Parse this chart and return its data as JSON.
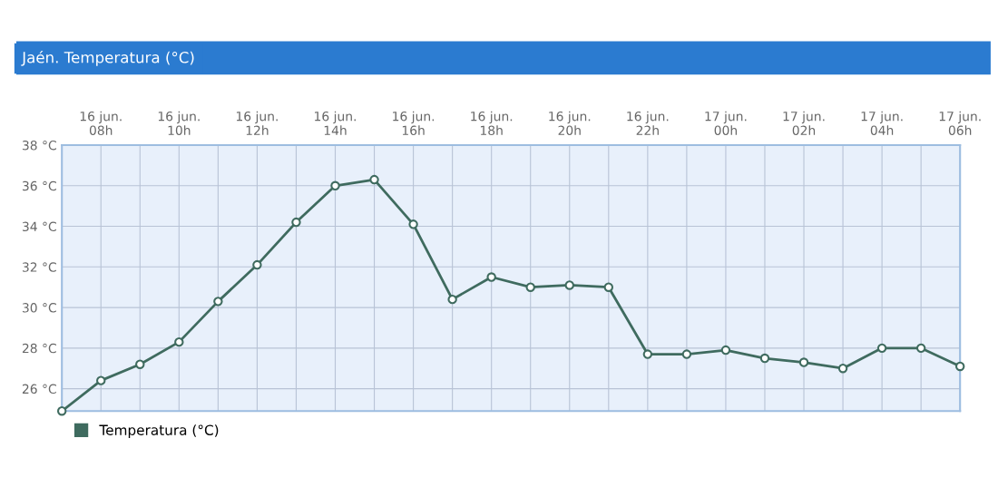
{
  "chart_data": {
    "type": "line",
    "title": "Jaén. Temperatura (°C)",
    "categories": [
      null,
      "16 jun.\n08h",
      null,
      "16 jun.\n10h",
      null,
      "16 jun.\n12h",
      null,
      "16 jun.\n14h",
      null,
      "16 jun.\n16h",
      null,
      "16 jun.\n18h",
      null,
      "16 jun.\n20h",
      null,
      "16 jun.\n22h",
      null,
      "17 jun.\n00h",
      null,
      "17 jun.\n02h",
      null,
      "17 jun.\n04h",
      null,
      "17 jun.\n06h"
    ],
    "series": [
      {
        "name": "Temperatura (°C)",
        "color": "#3f6b5f",
        "values": [
          24.9,
          26.4,
          27.2,
          28.3,
          30.3,
          32.1,
          34.2,
          36.0,
          36.3,
          34.1,
          30.4,
          31.5,
          31.0,
          31.1,
          31.0,
          27.7,
          27.7,
          27.9,
          27.5,
          27.3,
          27.0,
          28.0,
          28.0,
          27.1
        ]
      }
    ],
    "ylim": [
      24.9,
      38
    ],
    "yticks": [
      {
        "value": 26,
        "label": "26 °C"
      },
      {
        "value": 28,
        "label": "28 °C"
      },
      {
        "value": 30,
        "label": "30 °C"
      },
      {
        "value": 32,
        "label": "32 °C"
      },
      {
        "value": 34,
        "label": "34 °C"
      },
      {
        "value": 36,
        "label": "36 °C"
      },
      {
        "value": 38,
        "label": "38 °C"
      }
    ],
    "grid": true,
    "legend": "bottom left",
    "marker": "circle",
    "line_style": "solid"
  }
}
